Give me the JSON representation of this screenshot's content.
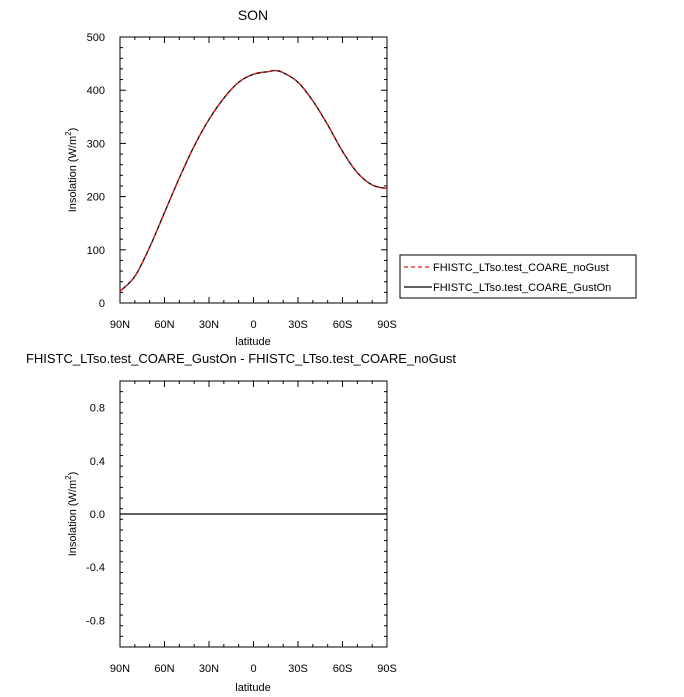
{
  "chart_data": [
    {
      "type": "line",
      "title": "SON",
      "xlabel": "latitude",
      "ylabel": "Insolation (W/m",
      "ylabel_sup": "2",
      "ylabel_end": ")",
      "xlim": [
        90,
        -90
      ],
      "ylim": [
        0,
        500
      ],
      "x_ticks": [
        90,
        60,
        30,
        0,
        -30,
        -60,
        -90
      ],
      "x_tick_labels": [
        "90N",
        "60N",
        "30N",
        "0",
        "30S",
        "60S",
        "90S"
      ],
      "y_ticks": [
        0,
        100,
        200,
        300,
        400,
        500
      ],
      "y_tick_labels": [
        "0",
        "100",
        "200",
        "300",
        "400",
        "500"
      ],
      "legend_position": "right",
      "series": [
        {
          "name": "FHISTC_LTso.test_COARE_noGust",
          "color": "#e41a1c",
          "dash": "dashed",
          "x": [
            90,
            80,
            70,
            60,
            50,
            40,
            30,
            20,
            10,
            0,
            -10,
            -15,
            -20,
            -30,
            -40,
            -50,
            -60,
            -70,
            -80,
            -90
          ],
          "y": [
            22,
            50,
            105,
            170,
            235,
            295,
            345,
            385,
            415,
            430,
            435,
            437,
            433,
            415,
            380,
            335,
            285,
            245,
            222,
            215
          ]
        },
        {
          "name": "FHISTC_LTso.test_COARE_GustOn",
          "color": "#000000",
          "dash": "solid",
          "x": [
            90,
            80,
            70,
            60,
            50,
            40,
            30,
            20,
            10,
            0,
            -10,
            -15,
            -20,
            -30,
            -40,
            -50,
            -60,
            -70,
            -80,
            -90
          ],
          "y": [
            22,
            50,
            105,
            170,
            235,
            295,
            345,
            385,
            415,
            430,
            435,
            437,
            433,
            415,
            380,
            335,
            285,
            245,
            222,
            215
          ]
        }
      ]
    },
    {
      "type": "line",
      "title": "FHISTC_LTso.test_COARE_GustOn - FHISTC_LTso.test_COARE_noGust",
      "xlabel": "latitude",
      "ylabel": "Insolation (W/m",
      "ylabel_sup": "2",
      "ylabel_end": ")",
      "xlim": [
        90,
        -90
      ],
      "ylim": [
        -1,
        1
      ],
      "x_ticks": [
        90,
        60,
        30,
        0,
        -30,
        -60,
        -90
      ],
      "x_tick_labels": [
        "90N",
        "60N",
        "30N",
        "0",
        "30S",
        "60S",
        "90S"
      ],
      "y_ticks": [
        -0.8,
        -0.4,
        0.0,
        0.4,
        0.8
      ],
      "y_tick_labels": [
        "-0.8",
        "-0.4",
        "0.0",
        "0.4",
        "0.8"
      ],
      "series": [
        {
          "color": "#000000",
          "dash": "solid",
          "x": [
            90,
            -90
          ],
          "y": [
            0,
            0
          ]
        }
      ]
    }
  ]
}
